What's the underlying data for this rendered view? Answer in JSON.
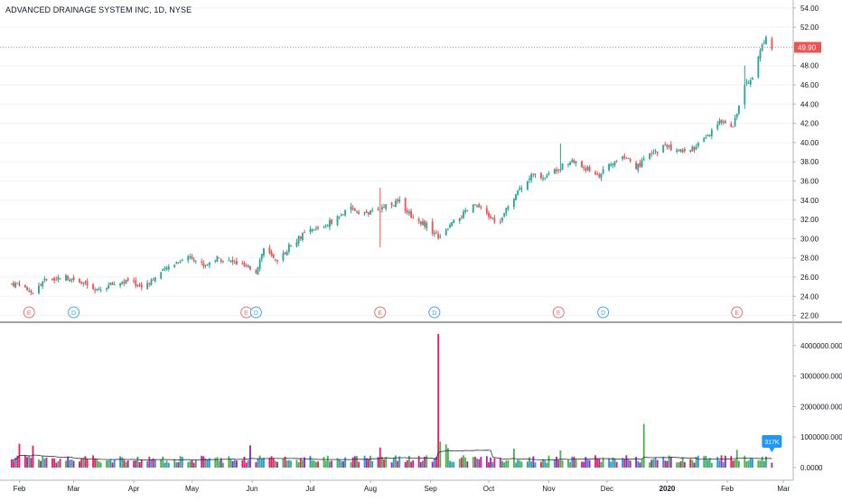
{
  "header": {
    "title": "ADVANCED DRAINAGE SYSTEM INC, 1D, NYSE"
  },
  "colors": {
    "up": "#26a69a",
    "down": "#ef5350",
    "vol_up": "#4caf50",
    "vol_down": "#e91e63",
    "vol_blue": "#2196f3",
    "vol_purple": "#9c27b0",
    "price_tag": "#ef5350",
    "vol_tag": "#2196f3",
    "event_e": "#e57373",
    "event_d": "#42a5f5",
    "axis": "#131722"
  },
  "chart_data": [
    {
      "type": "candlestick",
      "title": "ADVANCED DRAINAGE SYSTEM INC, 1D, NYSE",
      "ylim": [
        22,
        55
      ],
      "y_ticks": [
        "54.00",
        "52.00",
        "50.00",
        "48.00",
        "46.00",
        "44.00",
        "42.00",
        "40.00",
        "38.00",
        "36.00",
        "34.00",
        "32.00",
        "30.00",
        "28.00",
        "26.00",
        "24.00",
        "22.00"
      ],
      "x_ticks": [
        "Feb",
        "Mar",
        "Apr",
        "May",
        "Jun",
        "Jul",
        "Aug",
        "Sep",
        "Oct",
        "Nov",
        "Dec",
        "2020",
        "Feb",
        "Mar"
      ],
      "price_anchor_points": [
        {
          "date": "2019-02-01",
          "close": 25.3
        },
        {
          "date": "2019-02-08",
          "close": 24.4
        },
        {
          "date": "2019-02-15",
          "close": 25.8
        },
        {
          "date": "2019-02-25",
          "close": 26.0
        },
        {
          "date": "2019-03-05",
          "close": 25.6
        },
        {
          "date": "2019-03-12",
          "close": 24.5
        },
        {
          "date": "2019-03-20",
          "close": 25.2
        },
        {
          "date": "2019-03-29",
          "close": 25.6
        },
        {
          "date": "2019-04-05",
          "close": 25.0
        },
        {
          "date": "2019-04-12",
          "close": 26.0
        },
        {
          "date": "2019-04-22",
          "close": 27.5
        },
        {
          "date": "2019-04-30",
          "close": 28.2
        },
        {
          "date": "2019-05-07",
          "close": 27.2
        },
        {
          "date": "2019-05-14",
          "close": 28.0
        },
        {
          "date": "2019-05-21",
          "close": 27.6
        },
        {
          "date": "2019-05-28",
          "close": 27.1
        },
        {
          "date": "2019-06-03",
          "close": 26.6
        },
        {
          "date": "2019-06-07",
          "close": 29.0
        },
        {
          "date": "2019-06-11",
          "close": 28.1
        },
        {
          "date": "2019-06-14",
          "close": 27.4
        },
        {
          "date": "2019-06-21",
          "close": 29.5
        },
        {
          "date": "2019-06-28",
          "close": 30.5
        },
        {
          "date": "2019-07-08",
          "close": 31.3
        },
        {
          "date": "2019-07-15",
          "close": 32.2
        },
        {
          "date": "2019-07-22",
          "close": 33.1
        },
        {
          "date": "2019-07-30",
          "close": 32.6
        },
        {
          "date": "2019-08-05",
          "close": 33.0
        },
        {
          "date": "2019-08-09",
          "close": 33.5
        },
        {
          "date": "2019-08-16",
          "close": 33.8
        },
        {
          "date": "2019-08-23",
          "close": 32.2
        },
        {
          "date": "2019-08-30",
          "close": 31.4
        },
        {
          "date": "2019-09-05",
          "close": 30.2
        },
        {
          "date": "2019-09-10",
          "close": 31.2
        },
        {
          "date": "2019-09-17",
          "close": 32.4
        },
        {
          "date": "2019-09-24",
          "close": 33.5
        },
        {
          "date": "2019-10-01",
          "close": 32.3
        },
        {
          "date": "2019-10-07",
          "close": 31.6
        },
        {
          "date": "2019-10-10",
          "close": 33.0
        },
        {
          "date": "2019-10-16",
          "close": 35.0
        },
        {
          "date": "2019-10-23",
          "close": 36.6
        },
        {
          "date": "2019-10-30",
          "close": 36.4
        },
        {
          "date": "2019-11-06",
          "close": 37.4
        },
        {
          "date": "2019-11-13",
          "close": 38.1
        },
        {
          "date": "2019-11-20",
          "close": 37.3
        },
        {
          "date": "2019-11-27",
          "close": 36.6
        },
        {
          "date": "2019-12-04",
          "close": 37.9
        },
        {
          "date": "2019-12-10",
          "close": 38.6
        },
        {
          "date": "2019-12-16",
          "close": 37.4
        },
        {
          "date": "2019-12-23",
          "close": 38.6
        },
        {
          "date": "2019-12-31",
          "close": 39.7
        },
        {
          "date": "2020-01-08",
          "close": 39.0
        },
        {
          "date": "2020-01-15",
          "close": 39.4
        },
        {
          "date": "2020-01-22",
          "close": 40.6
        },
        {
          "date": "2020-01-29",
          "close": 42.3
        },
        {
          "date": "2020-02-04",
          "close": 41.8
        },
        {
          "date": "2020-02-06",
          "close": 43.2
        },
        {
          "date": "2020-02-10",
          "close": 46.0
        },
        {
          "date": "2020-02-14",
          "close": 46.9
        },
        {
          "date": "2020-02-18",
          "close": 49.5
        },
        {
          "date": "2020-02-21",
          "close": 51.2
        },
        {
          "date": "2020-02-24",
          "close": 49.9
        }
      ],
      "last_price": "49.90"
    },
    {
      "type": "bar",
      "series_name": "Volume",
      "ylim": [
        -300000,
        4700000
      ],
      "y_ticks": [
        "4000000.0000",
        "3000000.0000",
        "2000000.0000",
        "1000000.0000",
        "0.0000"
      ],
      "baseline_volume": 280000,
      "volume_spikes": [
        {
          "date": "2019-02-01",
          "value": 780000
        },
        {
          "date": "2019-02-08",
          "value": 720000
        },
        {
          "date": "2019-05-31",
          "value": 730000
        },
        {
          "date": "2019-08-06",
          "value": 660000
        },
        {
          "date": "2019-09-05",
          "value": 4380000
        },
        {
          "date": "2019-09-06",
          "value": 850000
        },
        {
          "date": "2019-09-09",
          "value": 760000
        },
        {
          "date": "2019-09-10",
          "value": 640000
        },
        {
          "date": "2019-10-14",
          "value": 620000
        },
        {
          "date": "2019-11-07",
          "value": 560000
        },
        {
          "date": "2019-12-20",
          "value": 1430000
        },
        {
          "date": "2020-02-06",
          "value": 580000
        }
      ],
      "last_value_label": "317K"
    }
  ],
  "events": [
    {
      "type": "E",
      "date": "2019-02-06"
    },
    {
      "type": "D",
      "date": "2019-03-01"
    },
    {
      "type": "E",
      "date": "2019-05-29"
    },
    {
      "type": "D",
      "date": "2019-06-03"
    },
    {
      "type": "E",
      "date": "2019-08-06"
    },
    {
      "type": "D",
      "date": "2019-09-03"
    },
    {
      "type": "E",
      "date": "2019-11-06"
    },
    {
      "type": "D",
      "date": "2019-11-29"
    },
    {
      "type": "E",
      "date": "2020-02-06"
    }
  ]
}
